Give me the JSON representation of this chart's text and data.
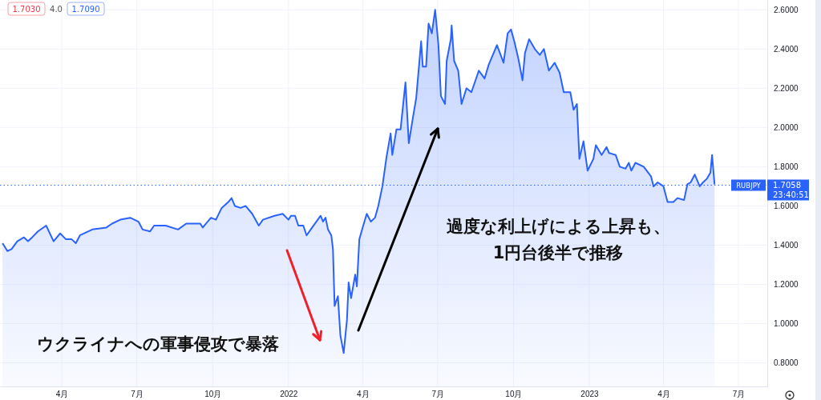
{
  "chart_data": {
    "type": "area",
    "x": [
      "2021-01-19",
      "2021-01-25",
      "2021-01-30",
      "2021-02-06",
      "2021-02-14",
      "2021-02-19",
      "2021-02-24",
      "2021-03-03",
      "2021-03-13",
      "2021-03-22",
      "2021-03-30",
      "2021-04-06",
      "2021-04-13",
      "2021-04-18",
      "2021-04-23",
      "2021-05-08",
      "2021-05-25",
      "2021-06-01",
      "2021-06-11",
      "2021-06-23",
      "2021-07-03",
      "2021-07-08",
      "2021-07-17",
      "2021-07-22",
      "2021-08-05",
      "2021-08-20",
      "2021-08-30",
      "2021-09-16",
      "2021-09-19",
      "2021-09-29",
      "2021-10-05",
      "2021-10-12",
      "2021-10-20",
      "2021-10-24",
      "2021-10-28",
      "2021-11-04",
      "2021-11-10",
      "2021-11-18",
      "2021-11-26",
      "2021-12-01",
      "2021-12-15",
      "2021-12-25",
      "2022-01-01",
      "2022-01-04",
      "2022-01-09",
      "2022-01-13",
      "2022-01-19",
      "2022-01-23",
      "2022-01-28",
      "2022-02-09",
      "2022-02-12",
      "2022-02-15",
      "2022-02-18",
      "2022-02-22",
      "2022-02-24",
      "2022-02-26",
      "2022-03-02",
      "2022-03-05",
      "2022-03-09",
      "2022-03-13",
      "2022-03-15",
      "2022-03-18",
      "2022-03-23",
      "2022-03-25",
      "2022-03-28",
      "2022-04-01",
      "2022-04-06",
      "2022-04-11",
      "2022-04-16",
      "2022-04-20",
      "2022-04-25",
      "2022-04-30",
      "2022-05-05",
      "2022-05-07",
      "2022-05-12",
      "2022-05-17",
      "2022-05-23",
      "2022-05-27",
      "2022-06-01",
      "2022-06-05",
      "2022-06-11",
      "2022-06-13",
      "2022-06-17",
      "2022-06-20",
      "2022-06-24",
      "2022-06-28",
      "2022-07-02",
      "2022-07-05",
      "2022-07-10",
      "2022-07-12",
      "2022-07-17",
      "2022-07-18",
      "2022-07-21",
      "2022-07-26",
      "2022-07-30",
      "2022-08-05",
      "2022-08-11",
      "2022-08-20",
      "2022-08-27",
      "2022-09-01",
      "2022-09-11",
      "2022-09-19",
      "2022-09-24",
      "2022-09-28",
      "2022-10-02",
      "2022-10-07",
      "2022-10-12",
      "2022-10-15",
      "2022-10-20",
      "2022-10-27",
      "2022-11-02",
      "2022-11-07",
      "2022-11-13",
      "2022-11-20",
      "2022-11-26",
      "2022-12-01",
      "2022-12-09",
      "2022-12-13",
      "2022-12-17",
      "2022-12-20",
      "2022-12-25",
      "2022-12-30",
      "2023-01-06",
      "2023-01-09",
      "2023-01-16",
      "2023-01-22",
      "2023-01-25",
      "2023-02-02",
      "2023-02-07",
      "2023-02-14",
      "2023-02-18",
      "2023-02-21",
      "2023-02-26",
      "2023-03-08",
      "2023-03-17",
      "2023-03-20",
      "2023-03-25",
      "2023-04-01",
      "2023-04-06",
      "2023-04-13",
      "2023-04-18",
      "2023-04-26",
      "2023-04-30",
      "2023-05-04",
      "2023-05-09",
      "2023-05-15",
      "2023-05-19",
      "2023-05-24",
      "2023-05-28",
      "2023-05-30",
      "2023-06-02"
    ],
    "series": [
      {
        "name": "RUBJPY",
        "color": "#2962ff",
        "values": [
          1.41,
          1.37,
          1.38,
          1.42,
          1.44,
          1.42,
          1.44,
          1.47,
          1.5,
          1.42,
          1.46,
          1.43,
          1.43,
          1.41,
          1.45,
          1.48,
          1.49,
          1.51,
          1.53,
          1.54,
          1.52,
          1.48,
          1.47,
          1.5,
          1.5,
          1.48,
          1.51,
          1.51,
          1.49,
          1.54,
          1.53,
          1.59,
          1.62,
          1.64,
          1.6,
          1.59,
          1.6,
          1.56,
          1.5,
          1.53,
          1.55,
          1.56,
          1.53,
          1.55,
          1.55,
          1.5,
          1.5,
          1.45,
          1.48,
          1.55,
          1.52,
          1.54,
          1.48,
          1.45,
          1.38,
          1.09,
          1.14,
          0.94,
          0.85,
          1.02,
          1.21,
          1.13,
          1.25,
          1.19,
          1.43,
          1.49,
          1.56,
          1.52,
          1.54,
          1.6,
          1.7,
          1.85,
          1.97,
          1.86,
          1.99,
          1.99,
          2.23,
          1.92,
          2.05,
          2.15,
          2.44,
          2.31,
          2.31,
          2.53,
          2.48,
          2.6,
          2.42,
          2.16,
          2.12,
          2.34,
          2.45,
          2.52,
          2.34,
          2.29,
          2.12,
          2.2,
          2.18,
          2.29,
          2.25,
          2.32,
          2.42,
          2.33,
          2.48,
          2.5,
          2.44,
          2.35,
          2.24,
          2.38,
          2.45,
          2.4,
          2.37,
          2.4,
          2.29,
          2.33,
          2.28,
          2.18,
          2.18,
          2.09,
          2.12,
          1.84,
          1.93,
          1.78,
          1.84,
          1.91,
          1.86,
          1.9,
          1.87,
          1.86,
          1.8,
          1.79,
          1.82,
          1.78,
          1.82,
          1.8,
          1.75,
          1.7,
          1.72,
          1.7,
          1.62,
          1.62,
          1.64,
          1.63,
          1.71,
          1.72,
          1.76,
          1.7,
          1.72,
          1.74,
          1.77,
          1.86,
          1.71
        ]
      }
    ],
    "xlim": [
      "2021-01-16",
      "2023-08-05"
    ],
    "xticks": [
      {
        "value": "2021-04-01",
        "label": "4月"
      },
      {
        "value": "2021-07-01",
        "label": "7月"
      },
      {
        "value": "2021-10-01",
        "label": "10月"
      },
      {
        "value": "2022-01-01",
        "label": "2022"
      },
      {
        "value": "2022-04-01",
        "label": "4月"
      },
      {
        "value": "2022-07-01",
        "label": "7月"
      },
      {
        "value": "2022-10-01",
        "label": "10月"
      },
      {
        "value": "2023-01-01",
        "label": "2023"
      },
      {
        "value": "2023-04-01",
        "label": "4月"
      },
      {
        "value": "2023-07-01",
        "label": "7月"
      }
    ],
    "ylim": [
      0.68,
      2.65
    ],
    "yticks": [
      {
        "value": 0.8,
        "label": "0.8000"
      },
      {
        "value": 1.0,
        "label": "1.0000"
      },
      {
        "value": 1.2,
        "label": "1.2000"
      },
      {
        "value": 1.4,
        "label": "1.4000"
      },
      {
        "value": 1.6,
        "label": "1.6000"
      },
      {
        "value": 1.8,
        "label": "1.8000"
      },
      {
        "value": 2.0,
        "label": "2.0000"
      },
      {
        "value": 2.2,
        "label": "2.2000"
      },
      {
        "value": 2.4,
        "label": "2.4000"
      },
      {
        "value": 2.6,
        "label": "2.6000"
      }
    ],
    "grid": true,
    "ref_lines": [
      {
        "axis": "y",
        "value": 1.7058,
        "label": "1.7058",
        "color": "#2962ff",
        "line_style": "dotted"
      }
    ],
    "annotations": [
      "ウクライナへの軍事侵攻で暴落",
      "過度な利上げによる上昇も、\n1円台後半で推移",
      "1.7030",
      "4.0",
      "1.7090",
      "23:40:51"
    ]
  }
}
